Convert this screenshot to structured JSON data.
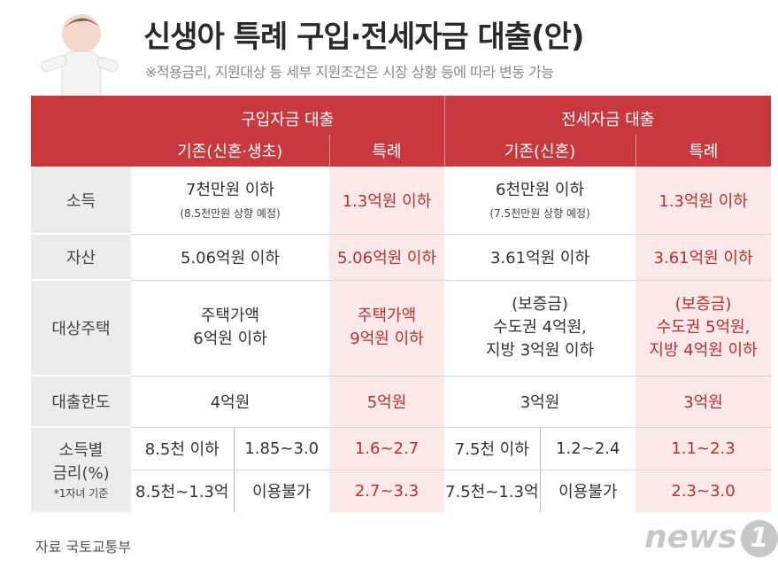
{
  "title": "신생아 특례 구입·전세자금 대출(안)",
  "note": "※적용금리, 지원대상 등 세부 지원조건은 시장 상황 등에 따라 변동 가능",
  "header": {
    "purchase": "구입자금 대출",
    "lease": "전세자금 대출",
    "purchase_existing": "기존(신혼·생초)",
    "purchase_special": "특례",
    "lease_existing": "기존(신혼)",
    "lease_special": "특례"
  },
  "rows": {
    "income": {
      "label": "소득",
      "p_exist": "7천만원 이하",
      "p_exist_sub": "(8.5천만원 상향 예정)",
      "p_special": "1.3억원 이하",
      "l_exist": "6천만원 이하",
      "l_exist_sub": "(7.5천만원 상향 예정)",
      "l_special": "1.3억원 이하"
    },
    "asset": {
      "label": "자산",
      "p_exist": "5.06억원 이하",
      "p_special": "5.06억원 이하",
      "l_exist": "3.61억원 이하",
      "l_special": "3.61억원 이하"
    },
    "house": {
      "label": "대상주택",
      "p_exist_1": "주택가액",
      "p_exist_2": "6억원 이하",
      "p_special_1": "주택가액",
      "p_special_2": "9억원 이하",
      "l_exist_1": "(보증금)",
      "l_exist_2": "수도권 4억원,",
      "l_exist_3": "지방 3억원 이하",
      "l_special_1": "(보증금)",
      "l_special_2": "수도권 5억원,",
      "l_special_3": "지방 4억원 이하"
    },
    "limit": {
      "label": "대출한도",
      "p_exist": "4억원",
      "p_special": "5억원",
      "l_exist": "3억원",
      "l_special": "3억원"
    },
    "rate": {
      "label_1": "소득별",
      "label_2": "금리(%)",
      "label_3": "*1자녀 기준",
      "r1_p_income": "8.5천 이하",
      "r1_p_rate": "1.85~3.0",
      "r1_p_special": "1.6~2.7",
      "r1_l_income": "7.5천 이하",
      "r1_l_rate": "1.2~2.4",
      "r1_l_special": "1.1~2.3",
      "r2_p_income": "8.5천~1.3억",
      "r2_p_rate": "이용불가",
      "r2_p_special": "2.7~3.3",
      "r2_l_income": "7.5천~1.3억",
      "r2_l_rate": "이용불가",
      "r2_l_special": "2.3~3.0"
    }
  },
  "footer": {
    "source": "자료  국토교통부",
    "logo_text": "news",
    "logo_number": "1"
  },
  "colors": {
    "header_red": "#c9383c",
    "special_text": "#b83033",
    "special_bg": "#fbe9e8"
  }
}
